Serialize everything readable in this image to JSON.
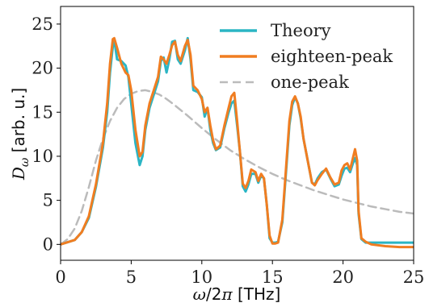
{
  "chart_data": {
    "type": "line",
    "xlabel": "ω/2π [THz]",
    "ylabel": "Dω [arb. u.]",
    "xlim": [
      0,
      25
    ],
    "ylim": [
      -1.8,
      27
    ],
    "xticks": [
      0,
      5,
      10,
      15,
      20,
      25
    ],
    "yticks": [
      0,
      5,
      10,
      15,
      20,
      25
    ],
    "grid": false,
    "legend_position": "top-right",
    "series": [
      {
        "name": "Theory",
        "color": "#2BB5C4",
        "style": "solid",
        "x": [
          0,
          1,
          1.5,
          2,
          2.5,
          3,
          3.3,
          3.5,
          3.7,
          3.8,
          4,
          4.3,
          4.6,
          4.8,
          5,
          5.3,
          5.6,
          5.8,
          6,
          6.3,
          6.6,
          6.9,
          7.1,
          7.3,
          7.5,
          7.7,
          7.9,
          8.1,
          8.3,
          8.5,
          8.8,
          9.0,
          9.2,
          9.4,
          9.7,
          10.0,
          10.2,
          10.4,
          10.6,
          10.8,
          11.0,
          11.3,
          11.6,
          11.9,
          12.1,
          12.3,
          12.5,
          12.7,
          12.9,
          13.1,
          13.3,
          13.5,
          13.8,
          14.0,
          14.2,
          14.4,
          14.6,
          14.8,
          15.0,
          15.2,
          15.4,
          15.7,
          16.0,
          16.2,
          16.4,
          16.6,
          16.8,
          17.0,
          17.2,
          17.5,
          17.8,
          18.0,
          18.2,
          18.5,
          18.8,
          19.1,
          19.4,
          19.7,
          19.9,
          20.1,
          20.3,
          20.5,
          20.7,
          20.85,
          21.0,
          21.1,
          21.3,
          21.6,
          22.0,
          23.0,
          24.0,
          25.0
        ],
        "y": [
          0,
          0.5,
          1.4,
          3.0,
          6.5,
          11.0,
          15.0,
          19.5,
          22.5,
          23.2,
          21.0,
          20.8,
          20.3,
          19.0,
          16.0,
          11.5,
          9.0,
          10.0,
          13.0,
          15.5,
          17.0,
          18.5,
          20.8,
          21.2,
          19.5,
          21.0,
          23.0,
          23.1,
          21.0,
          20.5,
          22.0,
          23.4,
          21.0,
          17.5,
          17.3,
          16.7,
          14.5,
          15.5,
          13.0,
          11.5,
          10.7,
          11.0,
          13.2,
          15.0,
          16.0,
          16.3,
          13.5,
          10.5,
          6.6,
          6.0,
          6.8,
          8.0,
          8.0,
          7.0,
          7.8,
          7.5,
          4.5,
          0.7,
          0.2,
          0.2,
          0.3,
          2.5,
          9.0,
          13.5,
          15.8,
          16.7,
          16.0,
          14.3,
          12.0,
          9.5,
          7.0,
          6.8,
          7.5,
          8.2,
          8.5,
          7.5,
          6.6,
          6.8,
          7.8,
          8.6,
          8.7,
          8.2,
          9.2,
          9.8,
          9.0,
          3.5,
          0.6,
          0.2,
          0.2,
          0.2,
          0.2,
          0.2
        ]
      },
      {
        "name": "eighteen-peak",
        "color": "#F07D21",
        "style": "solid",
        "x": [
          0,
          1,
          1.5,
          2,
          2.5,
          3,
          3.3,
          3.5,
          3.7,
          3.8,
          4,
          4.3,
          4.6,
          4.8,
          5,
          5.3,
          5.6,
          5.8,
          6,
          6.3,
          6.6,
          6.9,
          7.1,
          7.3,
          7.5,
          7.7,
          7.9,
          8.1,
          8.3,
          8.5,
          8.8,
          9.0,
          9.2,
          9.4,
          9.7,
          10.0,
          10.2,
          10.4,
          10.6,
          10.8,
          11.0,
          11.3,
          11.6,
          11.9,
          12.1,
          12.3,
          12.5,
          12.7,
          12.9,
          13.1,
          13.3,
          13.5,
          13.8,
          14.0,
          14.2,
          14.4,
          14.6,
          14.8,
          15.0,
          15.2,
          15.4,
          15.7,
          16.0,
          16.2,
          16.4,
          16.6,
          16.8,
          17.0,
          17.2,
          17.5,
          17.8,
          18.0,
          18.2,
          18.5,
          18.8,
          19.1,
          19.4,
          19.7,
          19.9,
          20.1,
          20.3,
          20.5,
          20.7,
          20.85,
          21.0,
          21.1,
          21.3,
          21.6,
          22.0,
          23.0,
          24.0,
          25.0
        ],
        "y": [
          0,
          0.5,
          1.4,
          3.2,
          6.8,
          11.5,
          16.0,
          20.5,
          23.3,
          23.4,
          22.3,
          20.5,
          19.5,
          19.2,
          17.5,
          13.0,
          10.0,
          10.5,
          13.5,
          16.0,
          17.5,
          19.0,
          21.3,
          21.0,
          20.5,
          21.5,
          22.6,
          23.0,
          21.5,
          20.8,
          22.5,
          23.2,
          21.5,
          18.0,
          17.5,
          16.5,
          15.0,
          15.5,
          13.5,
          11.8,
          10.8,
          11.2,
          13.5,
          15.5,
          16.8,
          17.2,
          14.0,
          10.5,
          6.9,
          6.4,
          7.2,
          8.5,
          8.2,
          7.2,
          8.0,
          7.5,
          4.5,
          1.0,
          0.1,
          0.1,
          0.2,
          2.8,
          9.5,
          14.0,
          16.2,
          16.8,
          16.0,
          14.5,
          12.0,
          9.5,
          7.0,
          6.7,
          7.3,
          8.0,
          8.6,
          7.6,
          6.8,
          7.0,
          8.4,
          9.0,
          9.2,
          8.5,
          9.8,
          10.8,
          9.5,
          3.8,
          0.7,
          0.3,
          0.0,
          -0.2,
          -0.3,
          -0.3
        ]
      },
      {
        "name": "one-peak",
        "color": "#BBBBBB",
        "style": "dashed",
        "x": [
          0,
          0.5,
          1,
          1.5,
          2,
          2.5,
          3,
          3.5,
          4,
          4.5,
          5,
          5.5,
          6,
          6.5,
          7,
          7.5,
          8,
          9,
          10,
          11,
          12,
          13,
          14,
          15,
          16,
          17,
          18,
          19,
          20,
          21,
          22,
          23,
          24,
          25
        ],
        "y": [
          0,
          0.6,
          1.8,
          3.8,
          6.5,
          9.5,
          12.0,
          14.0,
          15.5,
          16.5,
          17.1,
          17.4,
          17.5,
          17.3,
          17.0,
          16.5,
          15.9,
          14.6,
          13.2,
          11.9,
          10.7,
          9.7,
          8.8,
          8.0,
          7.3,
          6.7,
          6.1,
          5.6,
          5.1,
          4.7,
          4.3,
          4.0,
          3.7,
          3.5
        ]
      }
    ]
  }
}
